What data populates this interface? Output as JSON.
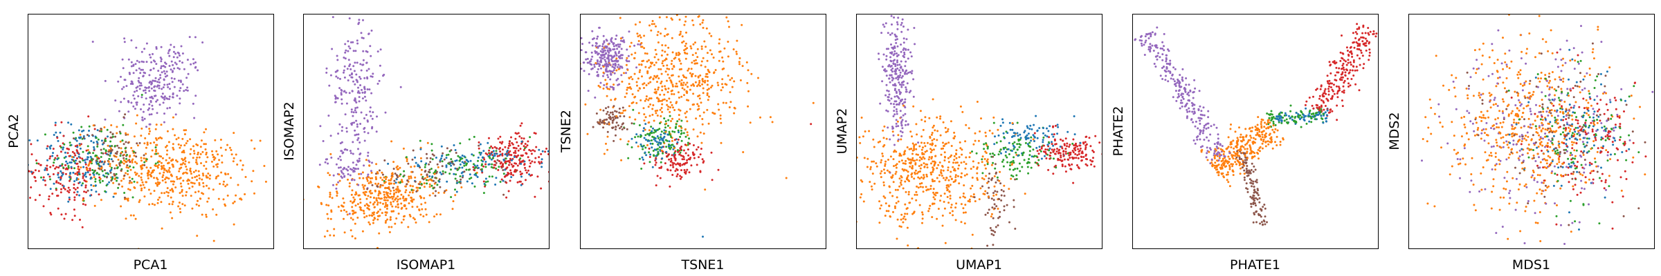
{
  "figure": {
    "point_radius": 1.5
  },
  "colors": {
    "blue": "#1f77b4",
    "orange": "#ff7f0e",
    "green": "#2ca02c",
    "red": "#d62728",
    "purple": "#9467bd",
    "brown": "#8c564b"
  },
  "chart_data": [
    {
      "type": "scatter",
      "xlabel": "PCA1",
      "ylabel": "PCA2",
      "xlim": [
        0,
        1
      ],
      "ylim": [
        0,
        1
      ],
      "xticks": [],
      "yticks": [],
      "grid": false,
      "legend": "none",
      "clusters": [
        {
          "color": "purple",
          "n": 260,
          "cx": 0.52,
          "cy": 0.71,
          "sx": 0.075,
          "sy": 0.1,
          "rot": -25
        },
        {
          "color": "orange",
          "n": 520,
          "cx": 0.58,
          "cy": 0.33,
          "sx": 0.16,
          "sy": 0.09,
          "rot": -8
        },
        {
          "color": "brown",
          "n": 80,
          "cx": 0.34,
          "cy": 0.4,
          "sx": 0.06,
          "sy": 0.07,
          "rot": 0
        },
        {
          "color": "green",
          "n": 120,
          "cx": 0.3,
          "cy": 0.38,
          "sx": 0.1,
          "sy": 0.08,
          "rot": 0
        },
        {
          "color": "blue",
          "n": 150,
          "cx": 0.22,
          "cy": 0.37,
          "sx": 0.09,
          "sy": 0.08,
          "rot": 0
        },
        {
          "color": "red",
          "n": 170,
          "cx": 0.16,
          "cy": 0.33,
          "sx": 0.08,
          "sy": 0.09,
          "rot": 0
        }
      ]
    },
    {
      "type": "scatter",
      "xlabel": "ISOMAP1",
      "ylabel": "ISOMAP2",
      "xlim": [
        0,
        1
      ],
      "ylim": [
        0,
        1
      ],
      "xticks": [],
      "yticks": [],
      "grid": false,
      "legend": "none",
      "clusters": [
        {
          "color": "purple",
          "n": 220,
          "cx": 0.21,
          "cy": 0.65,
          "sx": 0.05,
          "sy": 0.17,
          "rot": 0
        },
        {
          "color": "purple",
          "n": 60,
          "cx": 0.18,
          "cy": 0.36,
          "sx": 0.05,
          "sy": 0.05,
          "rot": 0
        },
        {
          "color": "orange",
          "n": 420,
          "cx": 0.33,
          "cy": 0.22,
          "sx": 0.12,
          "sy": 0.07,
          "rot": 10
        },
        {
          "color": "brown",
          "n": 90,
          "cx": 0.52,
          "cy": 0.32,
          "sx": 0.14,
          "sy": 0.05,
          "rot": 10
        },
        {
          "color": "green",
          "n": 110,
          "cx": 0.63,
          "cy": 0.34,
          "sx": 0.12,
          "sy": 0.05,
          "rot": 10
        },
        {
          "color": "blue",
          "n": 120,
          "cx": 0.7,
          "cy": 0.36,
          "sx": 0.13,
          "sy": 0.05,
          "rot": 10
        },
        {
          "color": "red",
          "n": 200,
          "cx": 0.86,
          "cy": 0.38,
          "sx": 0.06,
          "sy": 0.06,
          "rot": 10
        }
      ]
    },
    {
      "type": "scatter",
      "xlabel": "TSNE1",
      "ylabel": "TSNE2",
      "xlim": [
        0,
        1
      ],
      "ylim": [
        0,
        1
      ],
      "xticks": [],
      "yticks": [],
      "grid": false,
      "legend": "none",
      "clusters": [
        {
          "color": "purple",
          "n": 250,
          "cx": 0.11,
          "cy": 0.81,
          "sx": 0.045,
          "sy": 0.05,
          "rot": 0
        },
        {
          "color": "orange",
          "n": 560,
          "cx": 0.37,
          "cy": 0.72,
          "sx": 0.15,
          "sy": 0.13,
          "rot": 0
        },
        {
          "color": "brown",
          "n": 70,
          "cx": 0.13,
          "cy": 0.55,
          "sx": 0.03,
          "sy": 0.03,
          "rot": 0
        },
        {
          "color": "blue",
          "n": 70,
          "cx": 0.31,
          "cy": 0.45,
          "sx": 0.05,
          "sy": 0.04,
          "rot": 0
        },
        {
          "color": "green",
          "n": 110,
          "cx": 0.33,
          "cy": 0.47,
          "sx": 0.06,
          "sy": 0.05,
          "rot": 0
        },
        {
          "color": "red",
          "n": 120,
          "cx": 0.41,
          "cy": 0.37,
          "sx": 0.05,
          "sy": 0.04,
          "rot": 0
        }
      ],
      "outliers": [
        {
          "color": "orange",
          "x": 0.95,
          "y": 0.62
        },
        {
          "color": "red",
          "x": 0.94,
          "y": 0.53
        },
        {
          "color": "orange",
          "x": 0.84,
          "y": 0.3
        },
        {
          "color": "blue",
          "x": 0.5,
          "y": 0.05
        }
      ]
    },
    {
      "type": "scatter",
      "xlabel": "UMAP1",
      "ylabel": "UMAP2",
      "xlim": [
        0,
        1
      ],
      "ylim": [
        0,
        1
      ],
      "xticks": [],
      "yticks": [],
      "grid": false,
      "legend": "none",
      "clusters": [
        {
          "color": "purple",
          "n": 260,
          "cx": 0.17,
          "cy": 0.74,
          "sx": 0.03,
          "sy": 0.15,
          "rot": 0
        },
        {
          "color": "orange",
          "n": 580,
          "cx": 0.3,
          "cy": 0.32,
          "sx": 0.15,
          "sy": 0.12,
          "rot": 0
        },
        {
          "color": "brown",
          "n": 60,
          "cx": 0.57,
          "cy": 0.21,
          "sx": 0.03,
          "sy": 0.08,
          "rot": 0
        },
        {
          "color": "blue",
          "n": 90,
          "cx": 0.7,
          "cy": 0.47,
          "sx": 0.07,
          "sy": 0.04,
          "rot": 0
        },
        {
          "color": "green",
          "n": 110,
          "cx": 0.66,
          "cy": 0.41,
          "sx": 0.08,
          "sy": 0.05,
          "rot": 0
        },
        {
          "color": "red",
          "n": 170,
          "cx": 0.88,
          "cy": 0.41,
          "sx": 0.07,
          "sy": 0.04,
          "rot": 0
        }
      ]
    },
    {
      "type": "scatter",
      "xlabel": "PHATE1",
      "ylabel": "PHATE2",
      "xlim": [
        0,
        1
      ],
      "ylim": [
        0,
        1
      ],
      "xticks": [],
      "yticks": [],
      "grid": false,
      "legend": "none",
      "arms": [
        {
          "color": "purple",
          "n": 260,
          "x0": 0.06,
          "y0": 0.92,
          "x1": 0.37,
          "y1": 0.38,
          "w": 0.025
        },
        {
          "color": "orange",
          "n": 300,
          "x0": 0.33,
          "y0": 0.34,
          "x1": 0.58,
          "y1": 0.52,
          "w": 0.035
        },
        {
          "color": "brown",
          "n": 120,
          "x0": 0.45,
          "y0": 0.42,
          "x1": 0.53,
          "y1": 0.1,
          "w": 0.014
        },
        {
          "color": "green",
          "n": 90,
          "x0": 0.55,
          "y0": 0.55,
          "x1": 0.78,
          "y1": 0.57,
          "w": 0.018
        },
        {
          "color": "blue",
          "n": 70,
          "x0": 0.58,
          "y0": 0.56,
          "x1": 0.8,
          "y1": 0.57,
          "w": 0.015
        },
        {
          "color": "red",
          "n": 230,
          "x0": 0.76,
          "y0": 0.58,
          "x1": 0.96,
          "y1": 0.94,
          "w": 0.03
        }
      ]
    },
    {
      "type": "scatter",
      "xlabel": "MDS1",
      "ylabel": "MDS2",
      "xlim": [
        0,
        1
      ],
      "ylim": [
        0,
        1
      ],
      "xticks": [],
      "yticks": [],
      "grid": false,
      "legend": "none",
      "clusters": [
        {
          "color": "purple",
          "n": 220,
          "cx": 0.52,
          "cy": 0.53,
          "sx": 0.2,
          "sy": 0.2,
          "rot": 0
        },
        {
          "color": "orange",
          "n": 520,
          "cx": 0.48,
          "cy": 0.53,
          "sx": 0.17,
          "sy": 0.17,
          "rot": 0
        },
        {
          "color": "brown",
          "n": 90,
          "cx": 0.58,
          "cy": 0.5,
          "sx": 0.15,
          "sy": 0.15,
          "rot": 0
        },
        {
          "color": "blue",
          "n": 110,
          "cx": 0.7,
          "cy": 0.5,
          "sx": 0.12,
          "sy": 0.14,
          "rot": 0
        },
        {
          "color": "green",
          "n": 110,
          "cx": 0.68,
          "cy": 0.48,
          "sx": 0.11,
          "sy": 0.14,
          "rot": 0
        },
        {
          "color": "red",
          "n": 140,
          "cx": 0.74,
          "cy": 0.47,
          "sx": 0.11,
          "sy": 0.13,
          "rot": 0
        }
      ]
    }
  ]
}
